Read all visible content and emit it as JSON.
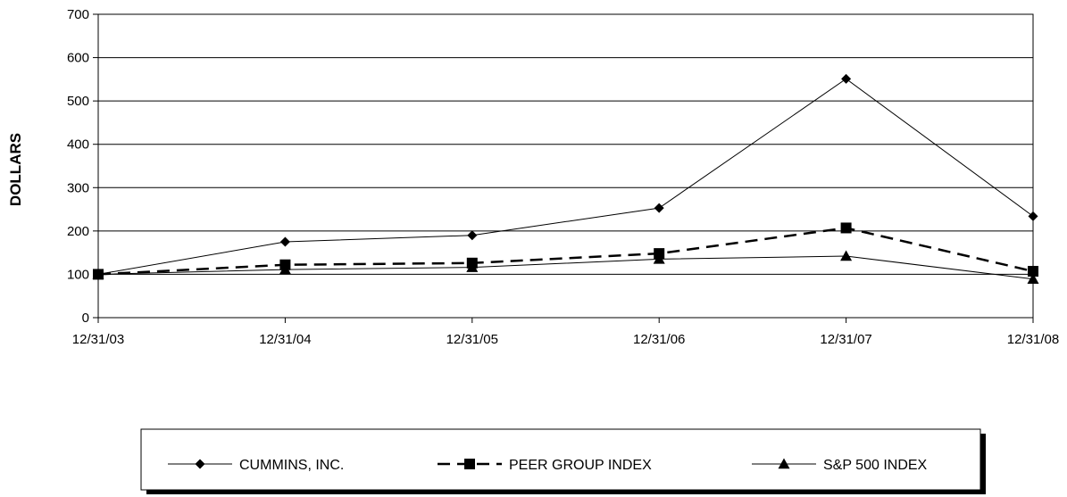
{
  "chart_data": {
    "type": "line",
    "title": "",
    "xlabel": "",
    "ylabel": "DOLLARS",
    "categories": [
      "12/31/03",
      "12/31/04",
      "12/31/05",
      "12/31/06",
      "12/31/07",
      "12/31/08"
    ],
    "ylim": [
      0,
      700
    ],
    "yticks": [
      0,
      100,
      200,
      300,
      400,
      500,
      600,
      700
    ],
    "grid": true,
    "legend_position": "bottom",
    "series": [
      {
        "name": "CUMMINS, INC.",
        "values": [
          100,
          175,
          190,
          253,
          551,
          234
        ],
        "line": "solid",
        "marker": "diamond",
        "color": "#000000"
      },
      {
        "name": "PEER GROUP INDEX",
        "values": [
          100,
          122,
          126,
          148,
          207,
          107
        ],
        "line": "dashed",
        "marker": "square",
        "color": "#000000"
      },
      {
        "name": "S&P 500 INDEX",
        "values": [
          100,
          111,
          116,
          135,
          142,
          89
        ],
        "line": "solid",
        "marker": "triangle",
        "color": "#000000"
      }
    ]
  }
}
